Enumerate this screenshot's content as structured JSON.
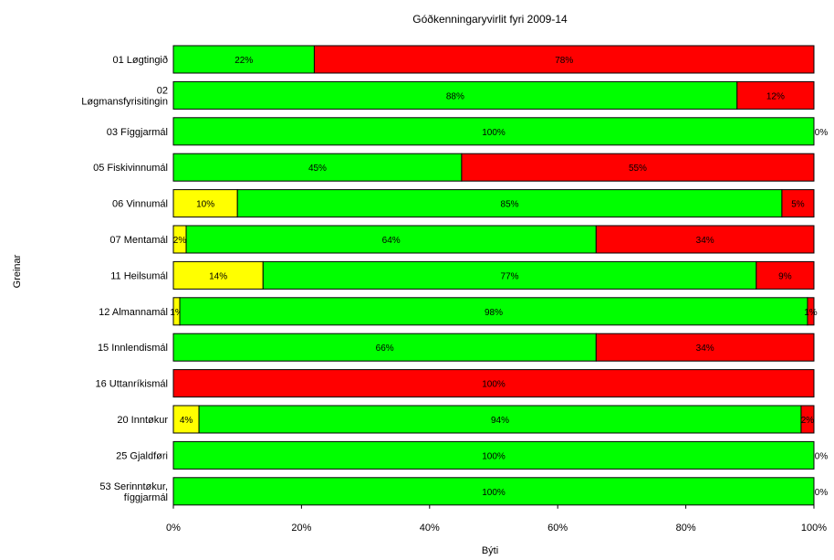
{
  "chart_data": {
    "type": "bar",
    "orientation": "horizontal",
    "stacked": true,
    "title": "Góðkenningaryvirlit fyri 2009-14",
    "xlabel": "Býti",
    "ylabel": "Greinar",
    "xlim": [
      0,
      100
    ],
    "xticks": [
      "0%",
      "20%",
      "40%",
      "60%",
      "80%",
      "100%"
    ],
    "grid": false,
    "legend": "none",
    "colors": {
      "yellow": "#ffff00",
      "green": "#00ff00",
      "red": "#ff0000",
      "border": "#000000"
    },
    "categories": [
      {
        "label": [
          "01 Løgtingið"
        ],
        "segments": [
          {
            "color": "green",
            "value": 22,
            "label": "22%"
          },
          {
            "color": "red",
            "value": 78,
            "label": "78%"
          }
        ]
      },
      {
        "label": [
          "02",
          "Løgmansfyrisitingin"
        ],
        "segments": [
          {
            "color": "green",
            "value": 88,
            "label": "88%"
          },
          {
            "color": "red",
            "value": 12,
            "label": "12%"
          }
        ]
      },
      {
        "label": [
          "03 Fíggjarmál"
        ],
        "segments": [
          {
            "color": "green",
            "value": 100,
            "label": "100%"
          },
          {
            "color": "red",
            "value": 0,
            "label": "0%"
          }
        ]
      },
      {
        "label": [
          "05 Fiskivinnumál"
        ],
        "segments": [
          {
            "color": "green",
            "value": 45,
            "label": "45%"
          },
          {
            "color": "red",
            "value": 55,
            "label": "55%"
          }
        ]
      },
      {
        "label": [
          "06 Vinnumál"
        ],
        "segments": [
          {
            "color": "yellow",
            "value": 10,
            "label": "10%"
          },
          {
            "color": "green",
            "value": 85,
            "label": "85%"
          },
          {
            "color": "red",
            "value": 5,
            "label": "5%"
          }
        ]
      },
      {
        "label": [
          "07 Mentamál"
        ],
        "segments": [
          {
            "color": "yellow",
            "value": 2,
            "label": "2%"
          },
          {
            "color": "green",
            "value": 64,
            "label": "64%"
          },
          {
            "color": "red",
            "value": 34,
            "label": "34%"
          }
        ]
      },
      {
        "label": [
          "11 Heilsumál"
        ],
        "segments": [
          {
            "color": "yellow",
            "value": 14,
            "label": "14%"
          },
          {
            "color": "green",
            "value": 77,
            "label": "77%"
          },
          {
            "color": "red",
            "value": 9,
            "label": "9%"
          }
        ]
      },
      {
        "label": [
          "12 Almannamál"
        ],
        "segments": [
          {
            "color": "yellow",
            "value": 1,
            "label": "1%"
          },
          {
            "color": "green",
            "value": 98,
            "label": "98%"
          },
          {
            "color": "red",
            "value": 1,
            "label": "1%"
          }
        ]
      },
      {
        "label": [
          "15 Innlendismál"
        ],
        "segments": [
          {
            "color": "green",
            "value": 66,
            "label": "66%"
          },
          {
            "color": "red",
            "value": 34,
            "label": "34%"
          }
        ]
      },
      {
        "label": [
          "16 Uttanríkismál"
        ],
        "segments": [
          {
            "color": "red",
            "value": 100,
            "label": "100%"
          }
        ]
      },
      {
        "label": [
          "20 Inntøkur"
        ],
        "segments": [
          {
            "color": "yellow",
            "value": 4,
            "label": "4%"
          },
          {
            "color": "green",
            "value": 94,
            "label": "94%"
          },
          {
            "color": "red",
            "value": 2,
            "label": "2%"
          }
        ]
      },
      {
        "label": [
          "25 Gjaldføri"
        ],
        "segments": [
          {
            "color": "green",
            "value": 100,
            "label": "100%"
          },
          {
            "color": "red",
            "value": 0,
            "label": "0%"
          }
        ]
      },
      {
        "label": [
          "53 Serinntøkur,",
          "fíggjarmál"
        ],
        "segments": [
          {
            "color": "green",
            "value": 100,
            "label": "100%"
          },
          {
            "color": "red",
            "value": 0,
            "label": "0%"
          }
        ]
      }
    ]
  }
}
